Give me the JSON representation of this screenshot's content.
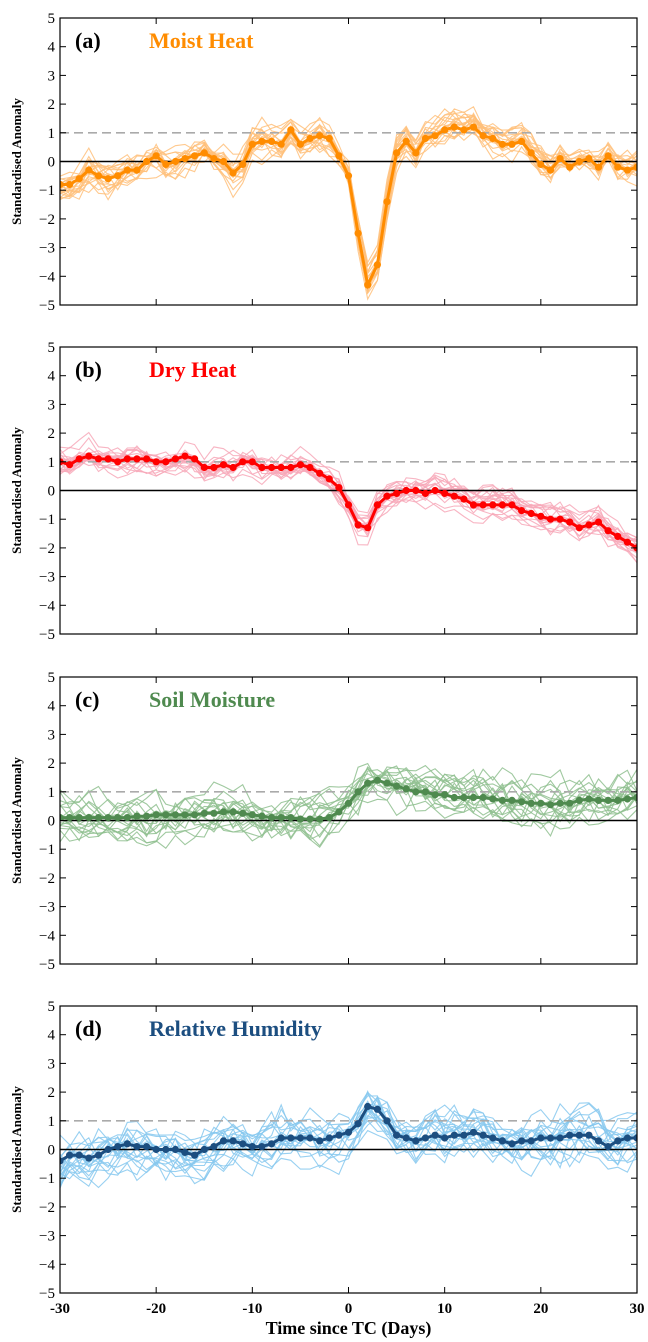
{
  "figure": {
    "xlabel": "Time since TC (Days)",
    "x_ticks": [
      -30,
      -20,
      -10,
      0,
      10,
      20,
      30
    ],
    "x_tick_labels": [
      "-30",
      "-20",
      "-10",
      "0",
      "10",
      "20",
      "30"
    ],
    "y_ticks": [
      -5,
      -4,
      -3,
      -2,
      -1,
      0,
      1,
      2,
      3,
      4,
      5
    ],
    "y_tick_labels": [
      "−5",
      "−4",
      "−3",
      "−2",
      "−1",
      "0",
      "1",
      "2",
      "3",
      "4",
      "5"
    ],
    "threshold_line_color": "#aaaaaa",
    "zero_line_color": "#000000"
  },
  "chart_data": [
    {
      "type": "line",
      "panel": "(a)",
      "title": "Moist Heat",
      "title_color": "#ff8c00",
      "ylabel": "Standardised Anomaly",
      "xlim": [
        -30,
        30
      ],
      "ylim": [
        -5,
        5
      ],
      "threshold": 1,
      "mean_color": "#ff8c00",
      "member_color": "#ffc07a",
      "ensemble_count": 20,
      "ensemble_spread": 0.65,
      "seed": 11,
      "x": [
        -30,
        -29,
        -28,
        -27,
        -26,
        -25,
        -24,
        -23,
        -22,
        -21,
        -20,
        -19,
        -18,
        -17,
        -16,
        -15,
        -14,
        -13,
        -12,
        -11,
        -10,
        -9,
        -8,
        -7,
        -6,
        -5,
        -4,
        -3,
        -2,
        -1,
        0,
        1,
        2,
        3,
        4,
        5,
        6,
        7,
        8,
        9,
        10,
        11,
        12,
        13,
        14,
        15,
        16,
        17,
        18,
        19,
        20,
        21,
        22,
        23,
        24,
        25,
        26,
        27,
        28,
        29,
        30
      ],
      "y": [
        -0.8,
        -0.8,
        -0.6,
        -0.3,
        -0.5,
        -0.6,
        -0.5,
        -0.3,
        -0.3,
        0.0,
        0.2,
        -0.1,
        0.0,
        0.1,
        0.2,
        0.3,
        0.1,
        0.0,
        -0.4,
        -0.1,
        0.6,
        0.7,
        0.7,
        0.6,
        1.1,
        0.6,
        0.8,
        0.9,
        0.8,
        0.2,
        -0.5,
        -2.5,
        -4.3,
        -3.6,
        -1.4,
        0.3,
        0.7,
        0.3,
        0.8,
        0.9,
        1.1,
        1.2,
        1.1,
        1.2,
        0.9,
        0.8,
        0.6,
        0.6,
        0.7,
        0.3,
        -0.1,
        -0.3,
        0.1,
        -0.2,
        0.0,
        0.1,
        -0.2,
        0.2,
        -0.2,
        -0.3,
        -0.2
      ]
    },
    {
      "type": "line",
      "panel": "(b)",
      "title": "Dry Heat",
      "title_color": "#ff0000",
      "ylabel": "Standardised Anomaly",
      "xlim": [
        -30,
        30
      ],
      "ylim": [
        -5,
        5
      ],
      "threshold": 1,
      "mean_color": "#ff0000",
      "member_color": "#f7a8b8",
      "ensemble_count": 20,
      "ensemble_spread": 0.55,
      "seed": 23,
      "x": [
        -30,
        -29,
        -28,
        -27,
        -26,
        -25,
        -24,
        -23,
        -22,
        -21,
        -20,
        -19,
        -18,
        -17,
        -16,
        -15,
        -14,
        -13,
        -12,
        -11,
        -10,
        -9,
        -8,
        -7,
        -6,
        -5,
        -4,
        -3,
        -2,
        -1,
        0,
        1,
        2,
        3,
        4,
        5,
        6,
        7,
        8,
        9,
        10,
        11,
        12,
        13,
        14,
        15,
        16,
        17,
        18,
        19,
        20,
        21,
        22,
        23,
        24,
        25,
        26,
        27,
        28,
        29,
        30
      ],
      "y": [
        1.0,
        0.9,
        1.1,
        1.2,
        1.1,
        1.1,
        1.0,
        1.1,
        1.1,
        1.1,
        1.0,
        1.0,
        1.1,
        1.2,
        1.1,
        0.8,
        0.8,
        0.9,
        0.8,
        1.0,
        1.0,
        0.8,
        0.8,
        0.8,
        0.8,
        0.9,
        0.8,
        0.6,
        0.4,
        0.1,
        -0.5,
        -1.2,
        -1.3,
        -0.5,
        -0.2,
        -0.1,
        0.0,
        0.0,
        -0.1,
        0.0,
        -0.1,
        -0.2,
        -0.3,
        -0.5,
        -0.5,
        -0.5,
        -0.5,
        -0.5,
        -0.7,
        -0.8,
        -0.9,
        -1.0,
        -1.0,
        -1.1,
        -1.3,
        -1.2,
        -1.1,
        -1.4,
        -1.6,
        -1.8,
        -2.0
      ]
    },
    {
      "type": "line",
      "panel": "(c)",
      "title": "Soil Moisture",
      "title_color": "#4f8a4f",
      "ylabel": "Standardised Anomaly",
      "xlim": [
        -30,
        30
      ],
      "ylim": [
        -5,
        5
      ],
      "threshold": 1,
      "mean_color": "#4f8a4f",
      "member_color": "#8fbf8f",
      "ensemble_count": 18,
      "ensemble_spread": 0.9,
      "seed": 37,
      "x": [
        -30,
        -29,
        -28,
        -27,
        -26,
        -25,
        -24,
        -23,
        -22,
        -21,
        -20,
        -19,
        -18,
        -17,
        -16,
        -15,
        -14,
        -13,
        -12,
        -11,
        -10,
        -9,
        -8,
        -7,
        -6,
        -5,
        -4,
        -3,
        -2,
        -1,
        0,
        1,
        2,
        3,
        4,
        5,
        6,
        7,
        8,
        9,
        10,
        11,
        12,
        13,
        14,
        15,
        16,
        17,
        18,
        19,
        20,
        21,
        22,
        23,
        24,
        25,
        26,
        27,
        28,
        29,
        30
      ],
      "y": [
        0.1,
        0.1,
        0.1,
        0.1,
        0.1,
        0.1,
        0.1,
        0.1,
        0.15,
        0.15,
        0.2,
        0.2,
        0.2,
        0.2,
        0.2,
        0.25,
        0.25,
        0.3,
        0.3,
        0.25,
        0.2,
        0.15,
        0.1,
        0.1,
        0.1,
        0.05,
        0.05,
        0.05,
        0.1,
        0.3,
        0.6,
        1.0,
        1.3,
        1.4,
        1.3,
        1.2,
        1.1,
        1.0,
        1.0,
        0.9,
        0.9,
        0.8,
        0.8,
        0.8,
        0.8,
        0.75,
        0.7,
        0.7,
        0.65,
        0.6,
        0.6,
        0.55,
        0.6,
        0.6,
        0.7,
        0.75,
        0.7,
        0.7,
        0.7,
        0.75,
        0.8
      ]
    },
    {
      "type": "line",
      "panel": "(d)",
      "title": "Relative Humidity",
      "title_color": "#1c4e80",
      "ylabel": "Standardised Anomaly",
      "xlim": [
        -30,
        30
      ],
      "ylim": [
        -5,
        5
      ],
      "threshold": 1,
      "mean_color": "#1c4e80",
      "member_color": "#86c8ee",
      "ensemble_count": 20,
      "ensemble_spread": 0.95,
      "seed": 53,
      "x": [
        -30,
        -29,
        -28,
        -27,
        -26,
        -25,
        -24,
        -23,
        -22,
        -21,
        -20,
        -19,
        -18,
        -17,
        -16,
        -15,
        -14,
        -13,
        -12,
        -11,
        -10,
        -9,
        -8,
        -7,
        -6,
        -5,
        -4,
        -3,
        -2,
        -1,
        0,
        1,
        2,
        3,
        4,
        5,
        6,
        7,
        8,
        9,
        10,
        11,
        12,
        13,
        14,
        15,
        16,
        17,
        18,
        19,
        20,
        21,
        22,
        23,
        24,
        25,
        26,
        27,
        28,
        29,
        30
      ],
      "y": [
        -0.4,
        -0.2,
        -0.2,
        -0.3,
        -0.2,
        0.0,
        0.1,
        0.2,
        0.1,
        0.1,
        0.0,
        0.0,
        0.0,
        -0.1,
        -0.2,
        0.0,
        0.1,
        0.3,
        0.3,
        0.2,
        0.1,
        0.1,
        0.2,
        0.4,
        0.4,
        0.4,
        0.4,
        0.3,
        0.4,
        0.5,
        0.6,
        0.9,
        1.5,
        1.4,
        1.0,
        0.5,
        0.4,
        0.3,
        0.4,
        0.5,
        0.4,
        0.5,
        0.5,
        0.6,
        0.5,
        0.4,
        0.3,
        0.2,
        0.3,
        0.3,
        0.4,
        0.4,
        0.4,
        0.5,
        0.5,
        0.5,
        0.3,
        0.1,
        0.3,
        0.4,
        0.4
      ]
    }
  ]
}
